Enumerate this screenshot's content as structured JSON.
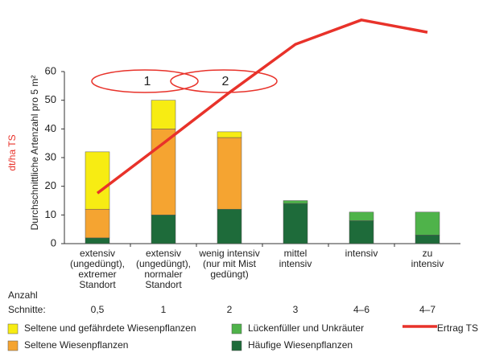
{
  "chart_data": {
    "type": "bar",
    "stacked": true,
    "y_label": "Durchschnittliche Artenzahl pro 5 m²",
    "categories": [
      [
        "extensiv",
        "(ungedüngt),",
        "extremer",
        "Standort"
      ],
      [
        "extensiv",
        "(ungedüngt),",
        "normaler",
        "Standort"
      ],
      [
        "wenig intensiv",
        "(nur mit Mist",
        "gedüngt)"
      ],
      [
        "mittel",
        "intensiv"
      ],
      [
        "intensiv"
      ],
      [
        "zu",
        "intensiv"
      ]
    ],
    "cuts_label": [
      "Anzahl",
      "Schnitte:"
    ],
    "cuts": [
      "0,5",
      "1",
      "2",
      "3",
      "4–6",
      "4–7"
    ],
    "ylim": [
      0,
      60
    ],
    "yticks": [
      0,
      10,
      20,
      30,
      40,
      50,
      60
    ],
    "series": [
      {
        "name": "Häufige Wiesenpflanzen",
        "color": "#1e6b3a",
        "values": [
          2,
          10,
          12,
          14,
          8,
          3
        ]
      },
      {
        "name": "Lückenfüller und Unkräuter",
        "color": "#4fb34a",
        "values": [
          0,
          0,
          0,
          1,
          3,
          8
        ]
      },
      {
        "name": "Seltene Wiesenpflanzen",
        "color": "#f5a431",
        "values": [
          10,
          30,
          25,
          0,
          0,
          0
        ]
      },
      {
        "name": "Seltene und gefährdete Wiesenpflanzen",
        "color": "#f7ec13",
        "values": [
          20,
          10,
          2,
          0,
          0,
          0
        ]
      }
    ],
    "line_series": {
      "name": "Ertrag TS",
      "axis_label": "dt/ha TS",
      "color": "#e8322a",
      "values": [
        17.6,
        35,
        52.7,
        69.5,
        78,
        73.7
      ]
    },
    "annotations": [
      "1",
      "2"
    ]
  }
}
